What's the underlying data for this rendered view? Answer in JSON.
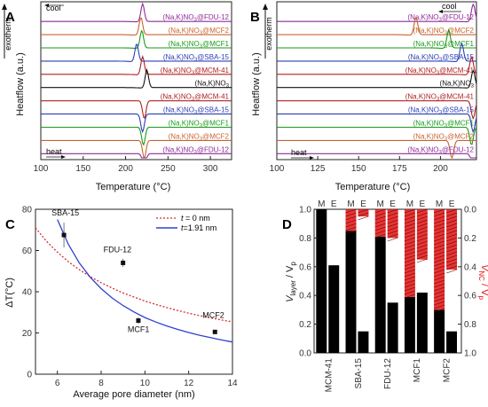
{
  "panels": {
    "A": {
      "letter": "A"
    },
    "B": {
      "letter": "B"
    },
    "C": {
      "letter": "C"
    },
    "D": {
      "letter": "D"
    }
  },
  "chart_data": [
    {
      "panel": "A",
      "type": "line",
      "xlabel": "Temperature (°C)",
      "ylabel": "Heatflow (a.u.)",
      "xlim": [
        100,
        325
      ],
      "xticks": [
        100,
        150,
        200,
        250,
        300
      ],
      "side_labels": {
        "exotherm": "exotherm",
        "cool": "cool",
        "heat": "heat"
      },
      "cooling": [
        {
          "name": "(Na,K)NO3@FDU-12",
          "color": "#8e2a9a",
          "peak": 220
        },
        {
          "name": "(Na,K)NO3@MCF2",
          "color": "#c8642f",
          "peak": 218
        },
        {
          "name": "(Na,K)NO3@MCF1",
          "color": "#1a9a1a",
          "peak": 219
        },
        {
          "name": "(Na,K)NO3@SBA-15",
          "color": "#2a3fb5",
          "peak": 213
        },
        {
          "name": "(Na,K)NO3@MCM-41",
          "color": "#b02020",
          "peak": 220
        }
      ],
      "reference": {
        "name": "(Na,K)NO3",
        "color": "#111111",
        "peak": 225
      },
      "heating": [
        {
          "name": "(Na,K)NO3@MCM-41",
          "color": "#b02020",
          "peak": 222
        },
        {
          "name": "(Na,K)NO3@SBA-15",
          "color": "#2a3fb5",
          "peak": 220
        },
        {
          "name": "(Na,K)NO3@MCF1",
          "color": "#1a9a1a",
          "peak": 221
        },
        {
          "name": "(Na,K)NO3@MCF2",
          "color": "#c8642f",
          "peak": 222
        },
        {
          "name": "(Na,K)NO3@FDU-12",
          "color": "#8e2a9a",
          "peak": 222
        }
      ]
    },
    {
      "panel": "B",
      "type": "line",
      "xlabel": "Temperature (°C)",
      "ylabel": "Heatflow (a.u.)",
      "xlim": [
        100,
        222
      ],
      "xticks": [
        100,
        125,
        150,
        175,
        200
      ],
      "side_labels": {
        "exotherm": "exotherm",
        "cool": "cool",
        "heat": "heat"
      },
      "cooling": [
        {
          "name": "(Na,K)NO3@FDU-12",
          "color": "#8e2a9a",
          "peak": 220
        },
        {
          "name": "(Na,K)NO3@MCF2",
          "color": "#c8642f",
          "peak": 185
        },
        {
          "name": "(Na,K)NO3@MCF1",
          "color": "#1a9a1a",
          "peak": 205
        },
        {
          "name": "(Na,K)NO3@SBA-15",
          "color": "#2a3fb5",
          "peak": 213
        },
        {
          "name": "(Na,K)NO3@MCM-41",
          "color": "#b02020",
          "peak": 219
        }
      ],
      "reference": {
        "name": "(Na,K)NO3",
        "color": "#111111",
        "peak": 220
      },
      "heating": [
        {
          "name": "(Na,K)NO3@MCM-41",
          "color": "#b02020",
          "peak": 220
        },
        {
          "name": "(Na,K)NO3@SBA-15",
          "color": "#2a3fb5",
          "peak": 220
        },
        {
          "name": "(Na,K)NO3@MCF1",
          "color": "#1a9a1a",
          "peak": 219
        },
        {
          "name": "(Na,K)NO3@MCF2",
          "color": "#c8642f",
          "peak": 207
        },
        {
          "name": "(Na,K)NO3@FDU-12",
          "color": "#8e2a9a",
          "peak": 220
        }
      ]
    },
    {
      "panel": "C",
      "type": "scatter",
      "xlabel": "Average pore diameter (nm)",
      "ylabel": "ΔT(°C)",
      "xlim": [
        5,
        14
      ],
      "ylim": [
        0,
        80
      ],
      "xticks": [
        6,
        8,
        10,
        12,
        14
      ],
      "yticks": [
        0,
        20,
        40,
        60,
        80
      ],
      "points": [
        {
          "label": "SBA-15",
          "x": 6.3,
          "y": 67.5,
          "err": 6
        },
        {
          "label": "FDU-12",
          "x": 9.0,
          "y": 54,
          "err": 2
        },
        {
          "label": "MCF1",
          "x": 9.7,
          "y": 26,
          "err": 1.5
        },
        {
          "label": "MCF2",
          "x": 13.2,
          "y": 20.5,
          "err": 0
        }
      ],
      "fits": [
        {
          "t": "t",
          "value": " = 0 nm",
          "color": "#d03030",
          "dash": true,
          "x": [
            5.0,
            5.5,
            6.0,
            6.5,
            7.0,
            7.5,
            8.0,
            8.5,
            9.0,
            9.5,
            10.0,
            10.5,
            11.0,
            11.5,
            12.0,
            12.5,
            13.0,
            13.5,
            14.0
          ],
          "y": [
            71.0,
            64.5,
            59.2,
            54.6,
            50.7,
            47.3,
            44.4,
            41.8,
            39.4,
            37.4,
            35.5,
            33.8,
            32.3,
            30.9,
            29.6,
            28.4,
            27.3,
            26.3,
            25.4
          ]
        },
        {
          "t": "t",
          "value": "=1.91 nm",
          "color": "#3040d0",
          "dash": false,
          "x": [
            6.0,
            6.5,
            7.0,
            7.5,
            8.0,
            8.5,
            9.0,
            9.5,
            10.0,
            10.5,
            11.0,
            11.5,
            12.0,
            12.5,
            13.0,
            13.5,
            14.0
          ],
          "y": [
            75.0,
            63.0,
            54.0,
            47.0,
            41.5,
            37.0,
            33.3,
            30.2,
            27.5,
            25.3,
            23.4,
            21.7,
            20.2,
            18.9,
            17.7,
            16.6,
            15.6
          ]
        }
      ]
    },
    {
      "panel": "D",
      "type": "bar",
      "ylabel_left": "V",
      "ylabel_left_sub": "layer",
      "ylabel_left_tail": " / V",
      "ylabel_left_sub2": "p",
      "ylabel_right": "V",
      "ylabel_right_sub": "NC",
      "ylabel_right_tail": " / V",
      "ylabel_right_sub2": "p",
      "ylim_left": [
        0,
        1
      ],
      "ylim_right": [
        1,
        0
      ],
      "yticks_left": [
        "0.0",
        "0.2",
        "0.4",
        "0.6",
        "0.8",
        "1.0"
      ],
      "yticks_right": [
        "0.0",
        "0.2",
        "0.4",
        "0.6",
        "0.8",
        "1.0"
      ],
      "categories": [
        "MCM-41",
        "SBA-15",
        "FDU-12",
        "MCF1",
        "MCF2"
      ],
      "bar_labels": [
        "M",
        "E"
      ],
      "colors": {
        "layer": "#000000",
        "nc": "#e01010"
      },
      "layer_M": [
        1.0,
        0.85,
        0.81,
        0.39,
        0.3
      ],
      "layer_E": [
        0.61,
        0.15,
        0.35,
        0.42,
        0.15
      ],
      "nc_M": [
        0.0,
        0.15,
        0.19,
        0.61,
        0.7
      ],
      "nc_E": [
        0.0,
        0.05,
        0.2,
        0.35,
        0.42
      ]
    }
  ]
}
